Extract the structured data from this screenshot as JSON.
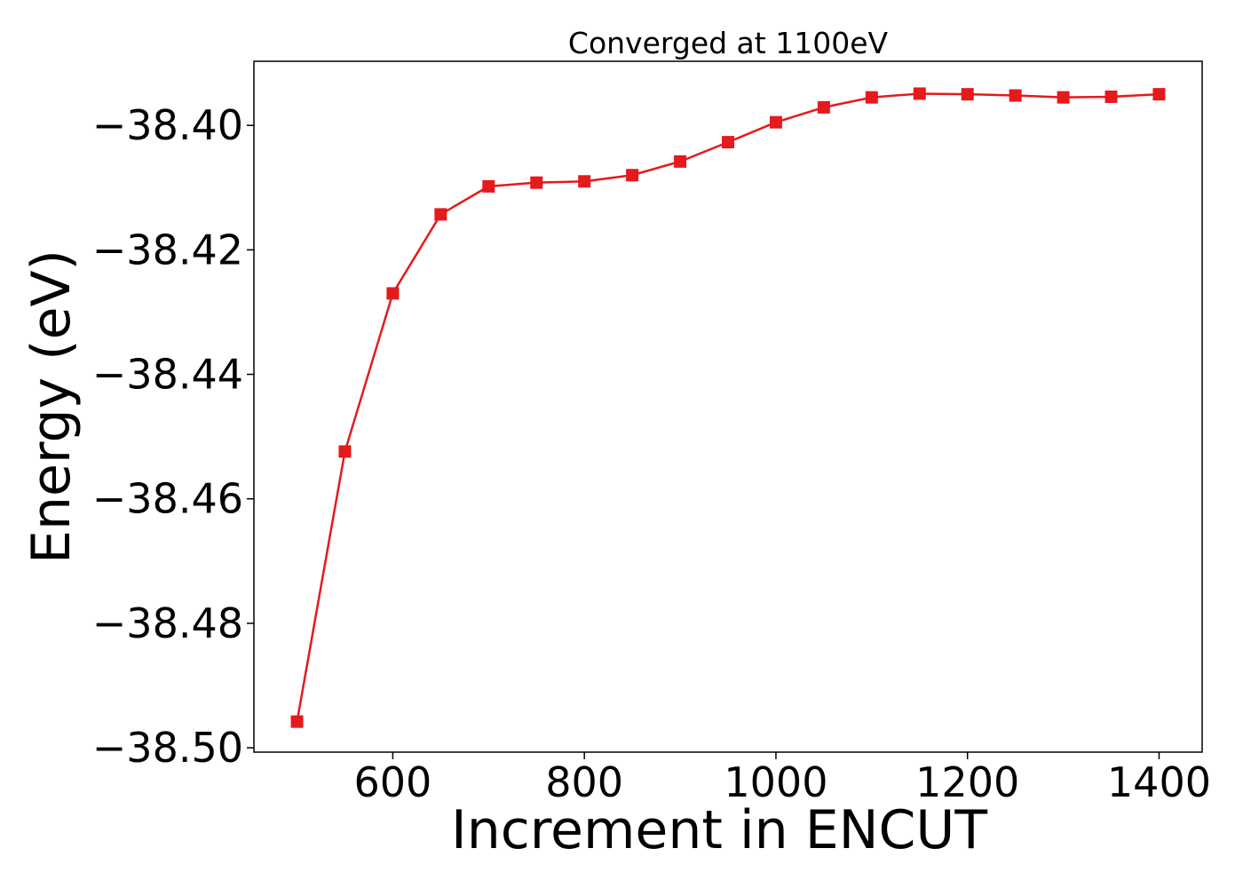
{
  "chart_data": {
    "type": "line",
    "title": "Converged at 1100eV",
    "xlabel": "Increment in ENCUT",
    "ylabel": "Energy (eV)",
    "xlim": [
      455,
      1445
    ],
    "ylim": [
      -38.5007,
      -38.3897
    ],
    "xticks": [
      600,
      800,
      1000,
      1200,
      1400
    ],
    "xtick_labels": [
      "600",
      "800",
      "1000",
      "1200",
      "1400"
    ],
    "yticks": [
      -38.4,
      -38.42,
      -38.44,
      -38.46,
      -38.48,
      -38.5
    ],
    "ytick_labels": [
      "−38.40",
      "−38.42",
      "−38.44",
      "−38.46",
      "−38.48",
      "−38.50"
    ],
    "grid": false,
    "series": [
      {
        "color": "#e41a1c",
        "marker": "square",
        "x": [
          500,
          550,
          600,
          650,
          700,
          750,
          800,
          850,
          900,
          950,
          1000,
          1050,
          1100,
          1150,
          1200,
          1250,
          1300,
          1350,
          1400
        ],
        "y": [
          -38.4958,
          -38.4524,
          -38.427,
          -38.4143,
          -38.4098,
          -38.4092,
          -38.409,
          -38.408,
          -38.4058,
          -38.4027,
          -38.3995,
          -38.3971,
          -38.3955,
          -38.3949,
          -38.395,
          -38.3952,
          -38.3955,
          -38.3954,
          -38.395
        ]
      }
    ]
  }
}
